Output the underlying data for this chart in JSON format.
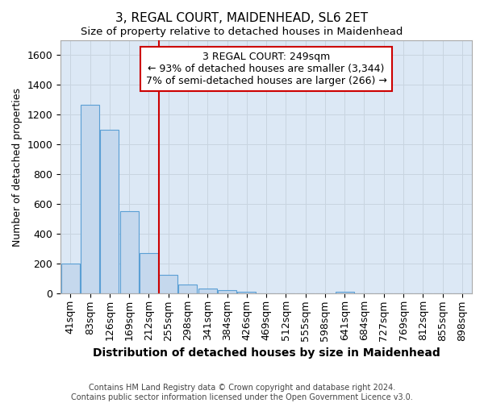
{
  "title": "3, REGAL COURT, MAIDENHEAD, SL6 2ET",
  "subtitle": "Size of property relative to detached houses in Maidenhead",
  "xlabel": "Distribution of detached houses by size in Maidenhead",
  "ylabel": "Number of detached properties",
  "footer_line1": "Contains HM Land Registry data © Crown copyright and database right 2024.",
  "footer_line2": "Contains public sector information licensed under the Open Government Licence v3.0.",
  "bar_labels": [
    "41sqm",
    "83sqm",
    "126sqm",
    "169sqm",
    "212sqm",
    "255sqm",
    "298sqm",
    "341sqm",
    "384sqm",
    "426sqm",
    "469sqm",
    "512sqm",
    "555sqm",
    "598sqm",
    "641sqm",
    "684sqm",
    "727sqm",
    "769sqm",
    "812sqm",
    "855sqm",
    "898sqm"
  ],
  "bar_values": [
    200,
    1270,
    1100,
    555,
    270,
    125,
    60,
    35,
    22,
    15,
    0,
    0,
    0,
    0,
    15,
    0,
    0,
    0,
    0,
    0,
    0
  ],
  "bar_color": "#c5d8ed",
  "bar_edge_color": "#5a9fd4",
  "grid_color": "#c8d4e0",
  "bg_color": "#dce8f5",
  "vline_x": 4.5,
  "vline_color": "#cc0000",
  "annotation_text": "3 REGAL COURT: 249sqm\n← 93% of detached houses are smaller (3,344)\n7% of semi-detached houses are larger (266) →",
  "annotation_box_color": "#cc0000",
  "ylim": [
    0,
    1700
  ],
  "yticks": [
    0,
    200,
    400,
    600,
    800,
    1000,
    1200,
    1400,
    1600
  ],
  "title_fontsize": 11,
  "subtitle_fontsize": 9.5,
  "xlabel_fontsize": 10,
  "ylabel_fontsize": 9,
  "tick_fontsize": 9,
  "ann_fontsize": 9,
  "footer_fontsize": 7
}
